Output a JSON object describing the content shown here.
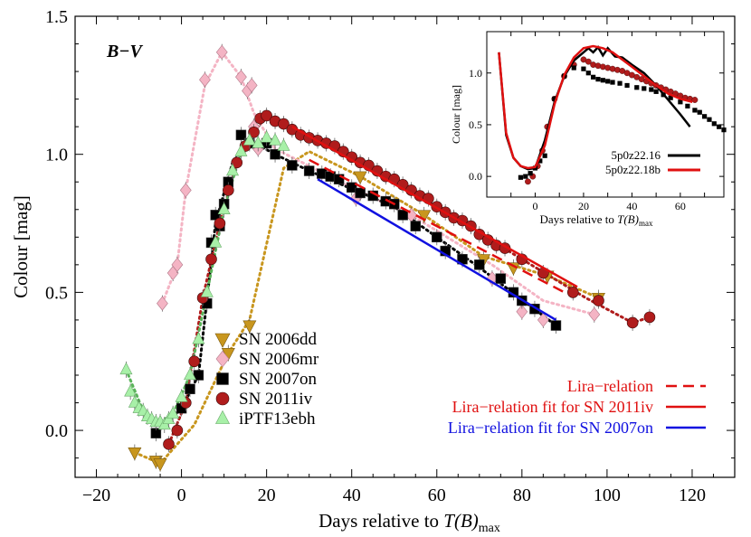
{
  "chart_data": [
    {
      "type": "scatter",
      "title": "B−V",
      "xlabel": "Days relative to ",
      "xlabel_italic": "T(B)",
      "xlabel_sub": "max",
      "ylabel": "Colour [mag]",
      "xlim": [
        -25,
        130
      ],
      "ylim": [
        -0.17,
        1.5
      ],
      "xticks": [
        -20,
        0,
        20,
        40,
        60,
        80,
        100,
        120
      ],
      "xtick_labels": [
        "−20",
        "0",
        "20",
        "40",
        "60",
        "80",
        "100",
        "120"
      ],
      "yticks": [
        0.0,
        0.5,
        1.0,
        1.5
      ],
      "ytick_labels": [
        "0.0",
        "0.5",
        "1.0",
        "1.5"
      ],
      "grid": false,
      "legend_position": "lower-left",
      "series": [
        {
          "name": "SN 2006dd",
          "marker": "triangle-down",
          "color": "#c8961e",
          "x": [
            -11,
            -6,
            -5,
            11,
            16,
            42,
            57,
            71,
            78,
            86,
            98
          ],
          "y": [
            -0.08,
            -0.11,
            -0.12,
            0.28,
            0.38,
            0.92,
            0.78,
            0.62,
            0.59,
            0.56,
            0.48
          ]
        },
        {
          "name": "SN 2006mr",
          "marker": "diamond",
          "color": "#f4b4c4",
          "x": [
            -4.5,
            -2,
            -1,
            1,
            5.5,
            9.5,
            14,
            15.5,
            16.5,
            17,
            18,
            41,
            54,
            73,
            80,
            85,
            97
          ],
          "y": [
            0.46,
            0.57,
            0.6,
            0.87,
            1.27,
            1.37,
            1.28,
            1.23,
            1.25,
            1.1,
            1.02,
            0.84,
            0.78,
            0.55,
            0.43,
            0.4,
            0.42
          ]
        },
        {
          "name": "SN 2007on",
          "marker": "square",
          "color": "#000000",
          "x": [
            -6,
            0,
            2,
            4,
            6,
            7,
            8,
            9,
            10,
            11,
            14,
            16,
            20,
            22,
            26,
            30,
            33,
            35,
            37,
            40,
            42,
            45,
            48,
            50,
            52,
            55,
            60,
            62,
            66,
            70,
            75,
            78,
            80,
            83,
            88
          ],
          "y": [
            -0.01,
            0.08,
            0.15,
            0.2,
            0.46,
            0.68,
            0.78,
            0.74,
            0.82,
            0.9,
            1.07,
            1.04,
            1.04,
            1.0,
            0.96,
            0.94,
            0.93,
            0.92,
            0.91,
            0.88,
            0.86,
            0.85,
            0.83,
            0.82,
            0.78,
            0.74,
            0.7,
            0.65,
            0.62,
            0.6,
            0.55,
            0.5,
            0.47,
            0.44,
            0.38
          ]
        },
        {
          "name": "SN 2011iv",
          "marker": "circle",
          "color": "#b01c1c",
          "x": [
            -3,
            -1,
            1,
            3,
            5,
            7,
            9,
            11,
            13,
            15,
            17,
            18.5,
            20,
            22,
            24,
            26,
            28,
            30,
            32,
            34,
            36,
            38,
            40,
            42,
            44,
            46,
            48,
            50,
            52,
            54,
            56,
            58,
            60,
            62,
            64,
            66,
            68,
            70,
            72,
            74,
            76,
            80,
            85,
            92,
            98,
            106,
            110
          ],
          "y": [
            -0.05,
            0.0,
            0.1,
            0.25,
            0.48,
            0.62,
            0.75,
            0.87,
            0.97,
            1.03,
            1.08,
            1.13,
            1.14,
            1.12,
            1.11,
            1.09,
            1.07,
            1.06,
            1.05,
            1.04,
            1.03,
            1.01,
            0.99,
            0.97,
            0.96,
            0.94,
            0.92,
            0.91,
            0.89,
            0.87,
            0.85,
            0.84,
            0.81,
            0.79,
            0.77,
            0.76,
            0.74,
            0.71,
            0.69,
            0.67,
            0.66,
            0.62,
            0.57,
            0.5,
            0.47,
            0.39,
            0.41
          ]
        },
        {
          "name": "iPTF13ebh",
          "marker": "triangle-up",
          "color": "#a8f0a8",
          "x": [
            -13,
            -12,
            -11,
            -10,
            -9,
            -8,
            -7,
            -6,
            -5,
            -4,
            -3,
            -2,
            0,
            2,
            4,
            6,
            8,
            10,
            12,
            14,
            16,
            18,
            20,
            22,
            24
          ],
          "y": [
            0.22,
            0.14,
            0.1,
            0.08,
            0.07,
            0.05,
            0.04,
            0.03,
            0.03,
            0.02,
            0.04,
            0.06,
            0.12,
            0.2,
            0.33,
            0.5,
            0.68,
            0.8,
            0.94,
            1.01,
            1.05,
            1.04,
            1.06,
            1.05,
            1.03
          ]
        }
      ],
      "lines": [
        {
          "name": "Lira−relation",
          "color": "#e01010",
          "style": "dashed",
          "x": [
            30,
            90
          ],
          "y": [
            0.98,
            0.5
          ]
        },
        {
          "name": "Lira−relation fit for SN 2011iv",
          "color": "#e01010",
          "style": "solid",
          "x": [
            26,
            93
          ],
          "y": [
            1.1,
            0.52
          ]
        },
        {
          "name": "Lira−relation fit for SN 2007on",
          "color": "#1010e0",
          "style": "solid",
          "x": [
            32,
            88
          ],
          "y": [
            0.91,
            0.4
          ]
        }
      ],
      "fits": [
        {
          "series": "SN 2006dd",
          "color": "#c8961e",
          "x": [
            -11,
            -5,
            3,
            11,
            16,
            24,
            30,
            42,
            57,
            71,
            86,
            98
          ],
          "y": [
            -0.08,
            -0.12,
            0.02,
            0.28,
            0.4,
            0.95,
            1.01,
            0.92,
            0.78,
            0.63,
            0.56,
            0.48
          ]
        },
        {
          "series": "SN 2006mr",
          "color": "#f4b4c4",
          "x": [
            -4.5,
            -1,
            1,
            5.5,
            9.5,
            14,
            17,
            22,
            40,
            55,
            73,
            85,
            97
          ],
          "y": [
            0.46,
            0.6,
            0.87,
            1.25,
            1.37,
            1.28,
            1.15,
            1.02,
            0.88,
            0.77,
            0.6,
            0.47,
            0.42
          ]
        },
        {
          "series": "SN 2007on",
          "color": "#000000",
          "x": [
            -6,
            0,
            4,
            8,
            12,
            16,
            22,
            30,
            50,
            70,
            88
          ],
          "y": [
            -0.01,
            0.08,
            0.2,
            0.75,
            0.97,
            1.05,
            1.0,
            0.94,
            0.81,
            0.59,
            0.38
          ]
        },
        {
          "series": "SN 2011iv",
          "color": "#b01c1c",
          "x": [
            -3,
            1,
            5,
            9,
            13,
            17,
            20,
            26,
            40,
            60,
            80,
            95,
            106,
            110
          ],
          "y": [
            -0.05,
            0.1,
            0.48,
            0.75,
            0.97,
            1.08,
            1.14,
            1.09,
            0.99,
            0.81,
            0.62,
            0.48,
            0.39,
            0.41
          ]
        },
        {
          "series": "iPTF13ebh",
          "color": "#5ab45a",
          "x": [
            -13,
            -9,
            -5,
            -2,
            2,
            6,
            10,
            14,
            18,
            22
          ],
          "y": [
            0.22,
            0.07,
            0.03,
            0.06,
            0.2,
            0.5,
            0.8,
            1.01,
            1.04,
            1.05
          ]
        }
      ],
      "legend_lines_labels": [
        "Lira−relation",
        "Lira−relation fit for SN 2011iv",
        "Lira−relation fit for SN 2007on"
      ]
    },
    {
      "type": "line",
      "title": "",
      "xlabel": "Days relative to ",
      "xlabel_italic": "T(B)",
      "xlabel_sub": "max",
      "ylabel": "Colour [mag]",
      "xlim": [
        -20,
        78
      ],
      "ylim": [
        -0.2,
        1.4
      ],
      "xticks": [
        -20,
        -10,
        0,
        10,
        20,
        30,
        40,
        50,
        60,
        70
      ],
      "xtick_labels": [
        "",
        "",
        "0",
        "",
        "20",
        "",
        "40",
        "",
        "60",
        ""
      ],
      "yticks": [
        0.0,
        0.5,
        1.0
      ],
      "ytick_labels": [
        "0.0",
        "0.5",
        "1.0"
      ],
      "legend_position": "lower-right",
      "series": [
        {
          "name": "5p0z22.16",
          "color": "#000000",
          "x": [
            -15,
            -12,
            -9,
            -6,
            -3,
            0,
            4,
            8,
            12,
            16,
            20,
            22,
            24,
            26,
            28,
            30,
            33,
            36,
            40,
            45,
            50,
            55,
            60,
            64
          ],
          "y": [
            1.2,
            0.4,
            0.18,
            0.1,
            0.07,
            0.08,
            0.35,
            0.72,
            0.97,
            1.12,
            1.2,
            1.24,
            1.2,
            1.25,
            1.17,
            1.24,
            1.16,
            1.15,
            1.08,
            1.0,
            0.88,
            0.74,
            0.6,
            0.48
          ]
        },
        {
          "name": "5p0z22.18b",
          "color": "#e01010",
          "x": [
            -15,
            -12,
            -9,
            -6,
            -3,
            0,
            4,
            8,
            12,
            16,
            20,
            24,
            28,
            32,
            36,
            40,
            45,
            50,
            55,
            60,
            65
          ],
          "y": [
            1.2,
            0.42,
            0.18,
            0.1,
            0.08,
            0.09,
            0.3,
            0.7,
            0.98,
            1.15,
            1.24,
            1.26,
            1.24,
            1.2,
            1.13,
            1.06,
            0.97,
            0.88,
            0.8,
            0.75,
            0.72
          ]
        }
      ],
      "points": [
        {
          "name": "SN 2011iv",
          "color": "#b01c1c",
          "x": [
            -3,
            -1,
            1,
            3,
            5,
            8,
            12,
            16,
            20,
            22,
            24,
            26,
            28,
            30,
            32,
            34,
            36,
            38,
            40,
            42,
            44,
            46,
            48,
            50,
            52,
            54,
            56,
            58,
            60,
            62,
            64,
            66
          ],
          "y": [
            -0.05,
            0.0,
            0.1,
            0.25,
            0.48,
            0.75,
            0.97,
            1.08,
            1.13,
            1.11,
            1.08,
            1.07,
            1.06,
            1.05,
            1.04,
            1.03,
            1.02,
            1.0,
            0.98,
            0.96,
            0.94,
            0.92,
            0.9,
            0.88,
            0.86,
            0.84,
            0.82,
            0.8,
            0.78,
            0.76,
            0.75,
            0.74
          ]
        },
        {
          "name": "SN 2007on",
          "color": "#000000",
          "x": [
            -6,
            -4,
            -2,
            0,
            2,
            4,
            8,
            12,
            16,
            20,
            22,
            24,
            26,
            28,
            30,
            32,
            35,
            38,
            42,
            45,
            48,
            50,
            53,
            56,
            60,
            63,
            66,
            68,
            70,
            72,
            74,
            76,
            78
          ],
          "y": [
            -0.01,
            0.0,
            0.03,
            0.08,
            0.15,
            0.2,
            0.75,
            0.97,
            1.05,
            1.04,
            1.0,
            0.96,
            0.94,
            0.93,
            0.92,
            0.91,
            0.9,
            0.88,
            0.86,
            0.85,
            0.84,
            0.82,
            0.79,
            0.76,
            0.72,
            0.68,
            0.64,
            0.62,
            0.58,
            0.55,
            0.51,
            0.48,
            0.45
          ]
        }
      ]
    }
  ]
}
